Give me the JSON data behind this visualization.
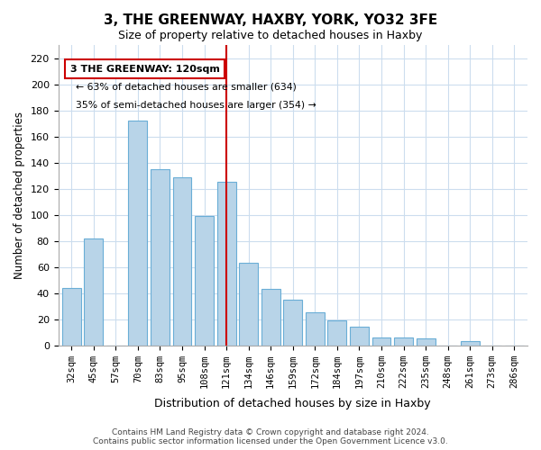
{
  "title": "3, THE GREENWAY, HAXBY, YORK, YO32 3FE",
  "subtitle": "Size of property relative to detached houses in Haxby",
  "xlabel": "Distribution of detached houses by size in Haxby",
  "ylabel": "Number of detached properties",
  "categories": [
    "32sqm",
    "45sqm",
    "57sqm",
    "70sqm",
    "83sqm",
    "95sqm",
    "108sqm",
    "121sqm",
    "134sqm",
    "146sqm",
    "159sqm",
    "172sqm",
    "184sqm",
    "197sqm",
    "210sqm",
    "222sqm",
    "235sqm",
    "248sqm",
    "261sqm",
    "273sqm",
    "286sqm"
  ],
  "values": [
    44,
    82,
    0,
    172,
    135,
    129,
    99,
    125,
    63,
    43,
    35,
    25,
    19,
    14,
    6,
    6,
    5,
    0,
    3,
    0,
    0
  ],
  "bar_color": "#b8d4e8",
  "bar_edge_color": "#6aaed6",
  "marker_index": 7,
  "marker_color": "#cc0000",
  "annotation_title": "3 THE GREENWAY: 120sqm",
  "annotation_line1": "← 63% of detached houses are smaller (634)",
  "annotation_line2": "35% of semi-detached houses are larger (354) →",
  "annotation_box_color": "#ffffff",
  "annotation_box_edge": "#cc0000",
  "ylim": [
    0,
    230
  ],
  "yticks": [
    0,
    20,
    40,
    60,
    80,
    100,
    120,
    140,
    160,
    180,
    200,
    220
  ],
  "footer_line1": "Contains HM Land Registry data © Crown copyright and database right 2024.",
  "footer_line2": "Contains public sector information licensed under the Open Government Licence v3.0.",
  "bg_color": "#ffffff",
  "grid_color": "#ccddee"
}
